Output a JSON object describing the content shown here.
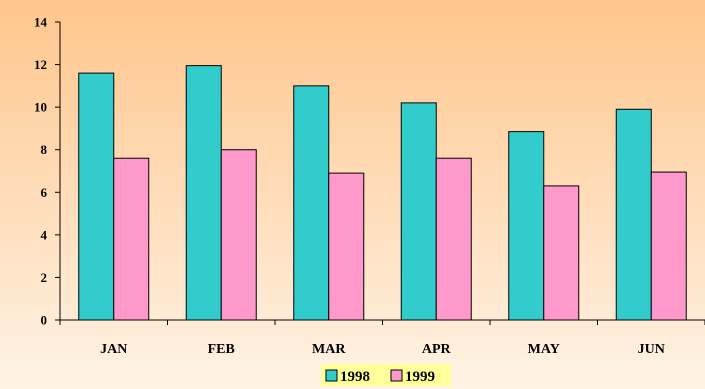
{
  "chart_data": {
    "type": "bar",
    "categories": [
      "JAN",
      "FEB",
      "MAR",
      "APR",
      "MAY",
      "JUN"
    ],
    "series": [
      {
        "name": "1998",
        "values": [
          11.6,
          11.95,
          11.0,
          10.2,
          8.85,
          9.9
        ],
        "color": "#33CCCC"
      },
      {
        "name": "1999",
        "values": [
          7.6,
          8.0,
          6.9,
          7.6,
          6.3,
          6.95
        ],
        "color": "#FF99CC"
      }
    ],
    "ylim": [
      0,
      14
    ],
    "yticks": [
      0,
      2,
      4,
      6,
      8,
      10,
      12,
      14
    ],
    "grid": false,
    "legend_position": "bottom-center",
    "background_gradient": [
      "#FFC68C",
      "#FFF3E6"
    ],
    "legend_background": "#FFFF99"
  }
}
